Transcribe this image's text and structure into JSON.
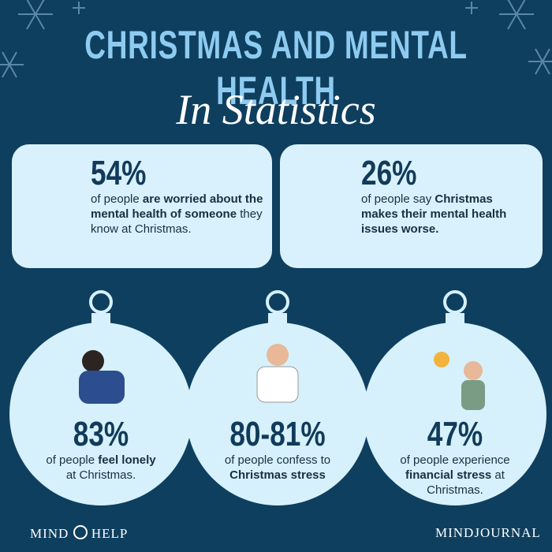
{
  "header": {
    "title": "CHRISTMAS AND MENTAL HEALTH",
    "subtitle": "In Statistics"
  },
  "cards": [
    {
      "stat": "54%",
      "parts": [
        {
          "text": "of people ",
          "bold": false
        },
        {
          "text": "are worried about the mental health of someone",
          "bold": true
        },
        {
          "text": " they know at Christmas.",
          "bold": false
        }
      ]
    },
    {
      "stat": "26%",
      "parts": [
        {
          "text": "of people say ",
          "bold": false
        },
        {
          "text": "Christmas makes their mental health issues worse.",
          "bold": true
        }
      ]
    }
  ],
  "ornaments": [
    {
      "stat": "83%",
      "parts": [
        {
          "text": "of people ",
          "bold": false
        },
        {
          "text": "feel lonely",
          "bold": true
        },
        {
          "text": " at Christmas.",
          "bold": false
        }
      ]
    },
    {
      "stat": "80-81%",
      "parts": [
        {
          "text": "of people confess to ",
          "bold": false
        },
        {
          "text": "Christmas stress",
          "bold": true
        }
      ]
    },
    {
      "stat": "47%",
      "parts": [
        {
          "text": "of people experience ",
          "bold": false
        },
        {
          "text": "financial stress",
          "bold": true
        },
        {
          "text": " at Christmas.",
          "bold": false
        }
      ]
    }
  ],
  "footer": {
    "left_first": "MIND",
    "left_second": "HELP",
    "right": "MINDJOURNAL"
  }
}
